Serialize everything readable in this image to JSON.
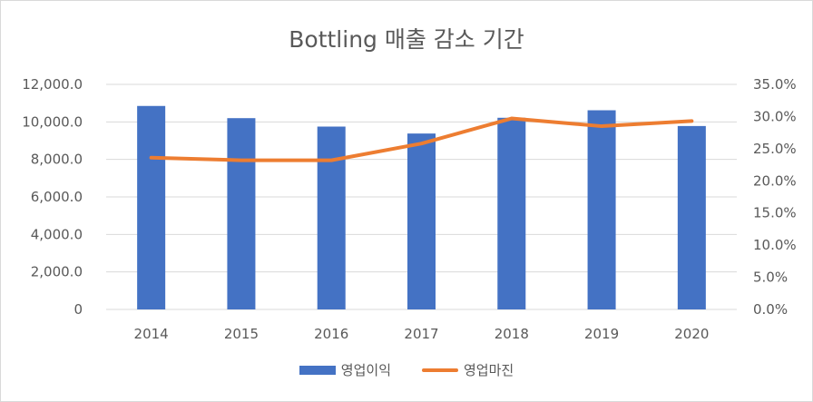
{
  "chart_data": {
    "type": "bar",
    "title": "Bottling 매출 감소 기간",
    "categories": [
      "2014",
      "2015",
      "2016",
      "2017",
      "2018",
      "2019",
      "2020"
    ],
    "series": [
      {
        "name": "영업이익",
        "type": "bar",
        "axis": "left",
        "color": "#4472c4",
        "values": [
          10850,
          10200,
          9750,
          9380,
          10220,
          10620,
          9780
        ]
      },
      {
        "name": "영업마진",
        "type": "line",
        "axis": "right",
        "color": "#ed7d31",
        "values": [
          23.6,
          23.2,
          23.2,
          25.8,
          29.7,
          28.5,
          29.3
        ]
      }
    ],
    "y_left": {
      "ylim": [
        0,
        12000
      ],
      "ticks": [
        0,
        2000,
        4000,
        6000,
        8000,
        10000,
        12000
      ],
      "tick_labels": [
        "0",
        "2,000.0",
        "4,000.0",
        "6,000.0",
        "8,000.0",
        "10,000.0",
        "12,000.0"
      ]
    },
    "y_right": {
      "ylim": [
        0,
        35
      ],
      "ticks": [
        0,
        5,
        10,
        15,
        20,
        25,
        30,
        35
      ],
      "tick_labels": [
        "0.0%",
        "5.0%",
        "10.0%",
        "15.0%",
        "20.0%",
        "25.0%",
        "30.0%",
        "35.0%"
      ]
    },
    "grid": true,
    "legend_position": "bottom"
  }
}
